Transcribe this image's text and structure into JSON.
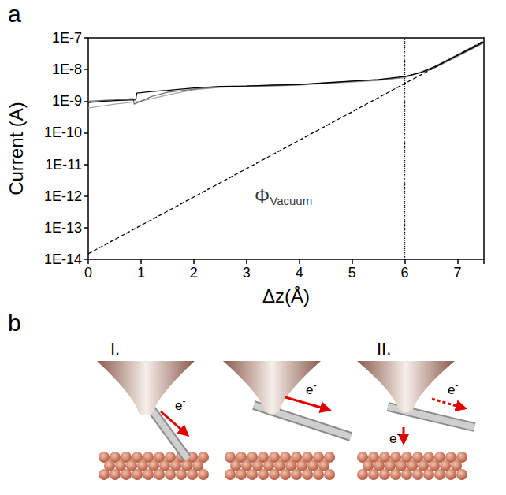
{
  "chart_data": {
    "type": "line",
    "panel_label": "a",
    "x_label": "Δz(Å)",
    "y_label": "Current (A)",
    "log": "y",
    "grid": false,
    "xlim": [
      0,
      7.5
    ],
    "xticks": [
      0,
      1,
      2,
      3,
      4,
      5,
      6,
      7
    ],
    "ylim": [
      1e-14,
      1e-07
    ],
    "yticks": [
      {
        "value": 1e-14,
        "label": "1E-14"
      },
      {
        "value": 1e-13,
        "label": "1E-13"
      },
      {
        "value": 1e-12,
        "label": "1E-12"
      },
      {
        "value": 1e-11,
        "label": "1E-11"
      },
      {
        "value": 1e-10,
        "label": "1E-10"
      },
      {
        "value": 1e-09,
        "label": "1E-9"
      },
      {
        "value": 1e-08,
        "label": "1E-8"
      },
      {
        "value": 1e-07,
        "label": "1E-7"
      }
    ],
    "series": [
      {
        "color": "#a8a8a8",
        "line_style": "solid",
        "x": [
          0,
          0.5,
          1,
          1.3,
          1.6,
          2,
          2.5,
          3,
          3.5,
          4,
          4.5,
          5,
          5.5,
          6,
          6.5,
          7,
          7.5
        ],
        "values": [
          6e-10,
          8e-10,
          1e-09,
          1.3e-09,
          1.7e-09,
          2.3e-09,
          2.7e-09,
          2.9e-09,
          3e-09,
          3.2e-09,
          3.6e-09,
          4e-09,
          4.5e-09,
          5.5e-09,
          1.1e-08,
          3e-08,
          8e-08
        ]
      },
      {
        "color": "#707070",
        "line_style": "solid",
        "x": [
          0,
          0.5,
          0.85,
          0.87,
          1.2,
          1.5,
          2,
          2.5,
          3,
          3.5,
          4,
          4.5,
          5,
          5.5,
          6,
          6.5,
          7,
          7.5
        ],
        "values": [
          1e-09,
          1.1e-09,
          1.2e-09,
          8e-10,
          1.4e-09,
          1.9e-09,
          2.4e-09,
          2.8e-09,
          3e-09,
          3.1e-09,
          3.4e-09,
          3.7e-09,
          4.2e-09,
          4.6e-09,
          5.8e-09,
          1e-08,
          2.6e-08,
          7e-08
        ]
      },
      {
        "color": "#000000",
        "line_style": "solid",
        "x": [
          0,
          0.3,
          0.6,
          0.9,
          0.92,
          1.2,
          1.5,
          2,
          2.5,
          3,
          3.5,
          4,
          4.5,
          5,
          5.5,
          6,
          6.3,
          6.6,
          7,
          7.3,
          7.5
        ],
        "values": [
          9e-10,
          1e-09,
          1.05e-09,
          1.1e-09,
          1.8e-09,
          2e-09,
          2.2e-09,
          2.6e-09,
          2.9e-09,
          3e-09,
          3.2e-09,
          3.3e-09,
          3.8e-09,
          4.3e-09,
          4.8e-09,
          6e-09,
          8e-09,
          1.3e-08,
          2.8e-08,
          5e-08,
          7.5e-08
        ]
      },
      {
        "color": "#000000",
        "line_style": "dashed",
        "x": [
          0,
          7.5
        ],
        "values": [
          1.5e-14,
          8e-08
        ]
      }
    ],
    "reference_line": {
      "x": 6,
      "line_style": "dotted",
      "color": "#000000"
    },
    "annotation": {
      "text": "Φ",
      "subscript": "Vacuum",
      "x": 3.7,
      "y": 1e-12
    }
  },
  "diagram": {
    "panel_label": "b",
    "stage_labels": [
      "I.",
      "II."
    ],
    "electron_label": {
      "base": "e",
      "sup": "-"
    }
  }
}
